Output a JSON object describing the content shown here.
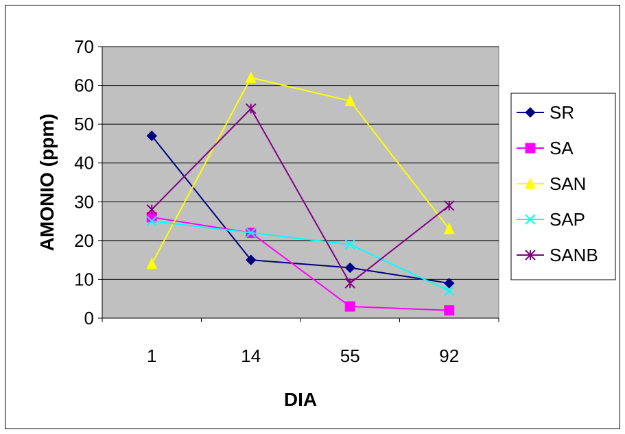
{
  "chart_data": {
    "type": "line",
    "categories": [
      "1",
      "14",
      "55",
      "92"
    ],
    "xlabel": "DIA",
    "ylabel": "AMONIO (ppm)",
    "ylim": [
      0,
      70
    ],
    "yticks": [
      0,
      10,
      20,
      30,
      40,
      50,
      60,
      70
    ],
    "grid": true,
    "plot_background": "#c0c0c0",
    "legend_position": "right",
    "series": [
      {
        "name": "SR",
        "values": [
          47,
          15,
          13,
          9
        ],
        "color": "#000080",
        "marker": "diamond"
      },
      {
        "name": "SA",
        "values": [
          26,
          22,
          3,
          2
        ],
        "color": "#ff00ff",
        "marker": "square"
      },
      {
        "name": "SAN",
        "values": [
          14,
          62,
          56,
          23
        ],
        "color": "#ffff00",
        "marker": "triangle"
      },
      {
        "name": "SAP",
        "values": [
          25,
          22,
          19,
          7
        ],
        "color": "#00ffff",
        "marker": "x"
      },
      {
        "name": "SANB",
        "values": [
          28,
          54,
          9,
          29
        ],
        "color": "#800080",
        "marker": "star"
      }
    ]
  }
}
